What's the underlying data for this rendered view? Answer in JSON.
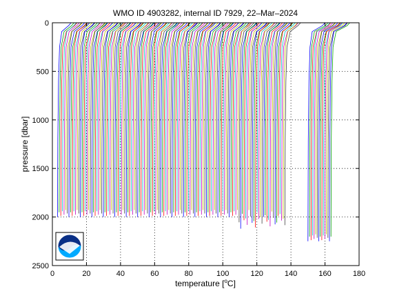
{
  "chart_data": {
    "type": "line",
    "title": "WMO ID 4903282, internal ID 7929, 22–Mar–2024",
    "xlabel_pre": "temperature [",
    "xlabel_unit": "C]",
    "xlabel_degree": "o",
    "ylabel": "pressure [dbar]",
    "xlim": [
      0,
      180
    ],
    "ylim": [
      0,
      2500
    ],
    "y_reversed": true,
    "grid": true,
    "grid_style": "dotted",
    "xticks": [
      "0",
      "20",
      "40",
      "60",
      "80",
      "100",
      "120",
      "140",
      "160",
      "180"
    ],
    "yticks": [
      "0",
      "500",
      "1000",
      "1500",
      "2000",
      "2500"
    ],
    "profile_colors": [
      "#0000ff",
      "#00a000",
      "#ff0000",
      "#00bfbf",
      "#bf00bf",
      "#bfbf00",
      "#404040"
    ],
    "profile_groups": [
      {
        "x_start": 3.0,
        "x_step": 0.96,
        "count": 140,
        "surface_offset": 8.0,
        "max_pressure": 2000
      },
      {
        "x_start": 150.0,
        "x_step": 0.9,
        "count": 16,
        "surface_offset": 10.0,
        "max_pressure": 2250
      }
    ],
    "logo": {
      "text": "NOAA",
      "type": "agency-logo"
    }
  }
}
